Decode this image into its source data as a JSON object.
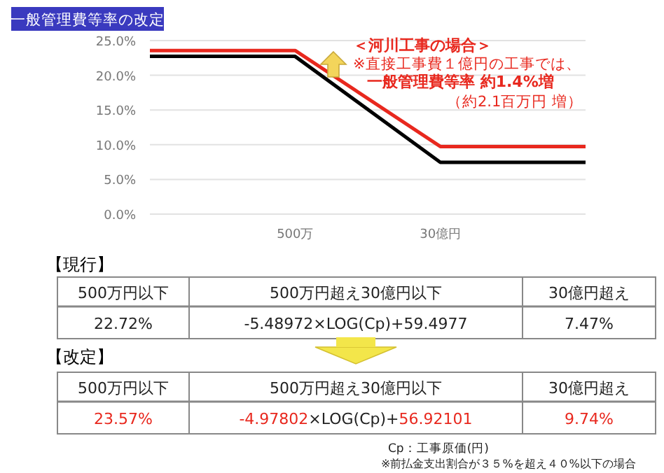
{
  "chart_data": {
    "type": "line",
    "title": "一般管理費等率の改定",
    "categories": [
      null,
      "500万",
      "30億円",
      null
    ],
    "series": [
      {
        "color": "#000000",
        "values": [
          22.72,
          22.72,
          7.47,
          7.47
        ]
      },
      {
        "color": "#e8281e",
        "values": [
          23.57,
          23.57,
          9.74,
          9.74
        ]
      }
    ],
    "ylim": [
      0,
      25
    ],
    "yticks": [
      {
        "value": 0,
        "label": "0.0%"
      },
      {
        "value": 5,
        "label": "5.0%"
      },
      {
        "value": 10,
        "label": "10.0%"
      },
      {
        "value": 15,
        "label": "15.0%"
      },
      {
        "value": 20,
        "label": "20.0%"
      },
      {
        "value": 25,
        "label": "25.0%"
      }
    ],
    "grid": "y",
    "marker": "none",
    "line_style": "solid",
    "annotations": [
      "＜河川工事の場合＞",
      "※直接工事費１億円の工事では、",
      "一般管理費等率 約1.4%増",
      "（約2.1百万円 増）",
      "【現行】",
      "500万円以下",
      "500万円超え30億円以下",
      "30億円超え",
      "22.72%",
      "-5.48972×LOG(Cp)+59.4977",
      "7.47%",
      "【改定】",
      "500万円以下",
      "500万円超え30億円以下",
      "30億円超え",
      "23.57%",
      "-4.97802",
      "×LOG(Cp)+",
      "56.92101",
      "9.74%",
      "Cp：工事原価(円)",
      "※前払金支出割合が３５%を超え４０%以下の場合"
    ]
  }
}
